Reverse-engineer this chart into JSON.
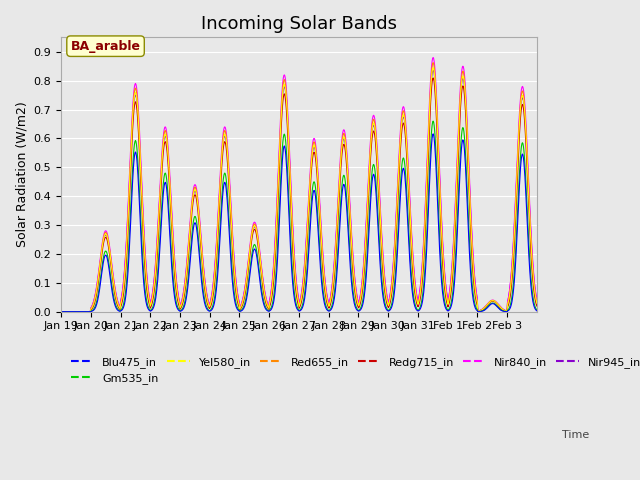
{
  "title": "Incoming Solar Bands",
  "ylabel": "Solar Radiation (W/m2)",
  "site_label": "BA_arable",
  "ylim": [
    0.0,
    0.95
  ],
  "yticks": [
    0.0,
    0.1,
    0.2,
    0.3,
    0.4,
    0.5,
    0.6,
    0.7,
    0.8,
    0.9
  ],
  "bg_color": "#e8e8e8",
  "line_colors": {
    "Blu475_in": "#0000ff",
    "Gm535_in": "#00cc00",
    "Yel580_in": "#ffff00",
    "Red655_in": "#ff8800",
    "Redg715_in": "#cc0000",
    "Nir840_in": "#ff00ff",
    "Nir945_in": "#8800cc"
  },
  "legend_labels": [
    "Blu475_in",
    "Gm535_in",
    "Yel580_in",
    "Red655_in",
    "Redg715_in",
    "Nir840_in",
    "Nir945_in"
  ],
  "xticklabels": [
    "Jan 19",
    "Jan 20",
    "Jan 21",
    "Jan 22",
    "Jan 23",
    "Jan 24",
    "Jan 25",
    "Jan 26",
    "Jan 27",
    "Jan 28",
    "Jan 29",
    "Jan 30",
    "Jan 31",
    "Feb 1",
    "Feb 2",
    "Feb 3"
  ],
  "peak_mags": [
    0.0,
    0.28,
    0.79,
    0.64,
    0.44,
    0.64,
    0.31,
    0.82,
    0.6,
    0.63,
    0.68,
    0.71,
    0.88,
    0.85,
    0.04,
    0.78
  ],
  "total_days": 16,
  "n_points": 960,
  "title_fontsize": 13,
  "label_fontsize": 9,
  "tick_fontsize": 8
}
